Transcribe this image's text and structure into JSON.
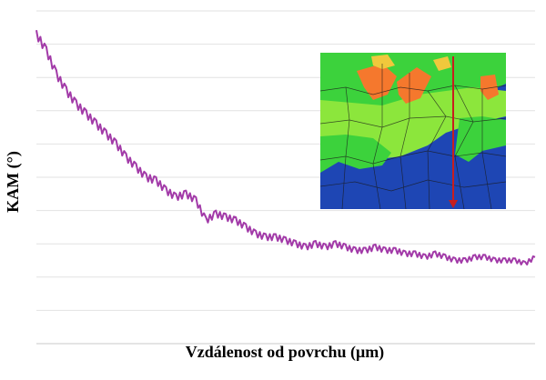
{
  "chart_data": {
    "type": "line",
    "title": "",
    "xlabel": "Vzdálenost od povrchu (μm)",
    "ylabel": "KAM (°)",
    "ylim": [
      0,
      10
    ],
    "xlim": [
      0,
      100
    ],
    "grid": {
      "horizontal": true,
      "vertical": false
    },
    "legend": "none",
    "x_ticks_visible": false,
    "y_ticks_visible": false,
    "series": [
      {
        "color": "#a23aa8",
        "x": [
          0,
          2,
          4,
          6,
          8,
          10,
          12,
          14,
          16,
          18,
          20,
          22,
          24,
          26,
          28,
          30,
          32,
          34,
          36,
          38,
          40,
          42,
          44,
          46,
          48,
          50,
          52,
          54,
          56,
          58,
          60,
          62,
          64,
          66,
          68,
          70,
          72,
          74,
          76,
          78,
          80,
          82,
          84,
          86,
          88,
          90,
          92,
          94,
          96,
          98,
          100
        ],
        "values": [
          9.3,
          8.8,
          8.1,
          7.6,
          7.2,
          6.9,
          6.6,
          6.3,
          6.0,
          5.6,
          5.3,
          5.0,
          4.9,
          4.6,
          4.4,
          4.5,
          4.3,
          3.7,
          3.9,
          3.8,
          3.7,
          3.5,
          3.3,
          3.2,
          3.2,
          3.1,
          3.0,
          2.9,
          3.0,
          2.9,
          3.0,
          2.9,
          2.8,
          2.8,
          2.9,
          2.8,
          2.8,
          2.7,
          2.7,
          2.6,
          2.7,
          2.6,
          2.5,
          2.5,
          2.6,
          2.6,
          2.5,
          2.5,
          2.5,
          2.4,
          2.6
        ]
      }
    ],
    "inset": {
      "type": "image",
      "description_colors": [
        "#3cd23c",
        "#8ce63c",
        "#1e46b4",
        "#f5782d",
        "#f0c83c",
        "#c81e1e"
      ]
    }
  }
}
